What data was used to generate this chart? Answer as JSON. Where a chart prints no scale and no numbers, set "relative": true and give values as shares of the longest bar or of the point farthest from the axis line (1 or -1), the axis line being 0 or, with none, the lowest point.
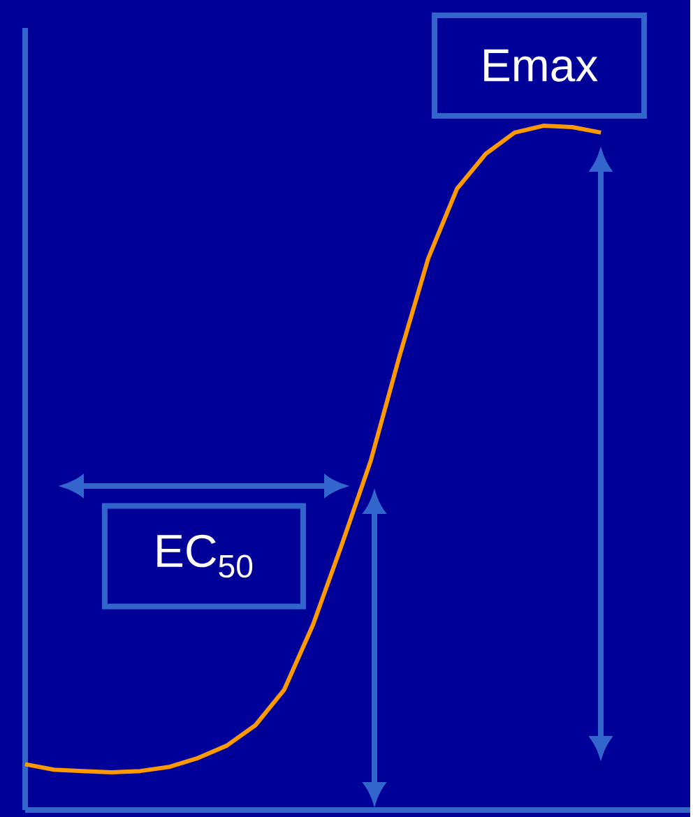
{
  "chart_data": {
    "type": "line",
    "relative": true,
    "categories": [
      null,
      null,
      null,
      null,
      null,
      null,
      null,
      null,
      null,
      null,
      null,
      null,
      null,
      null,
      null,
      null,
      null,
      null,
      null,
      null,
      null
    ],
    "series": [
      {
        "color": "#ff9900",
        "values": [
          0.067,
          0.059,
          0.057,
          0.055,
          0.057,
          0.063,
          0.076,
          0.094,
          0.124,
          0.176,
          0.271,
          0.388,
          0.51,
          0.663,
          0.806,
          0.908,
          0.959,
          0.99,
          1.0,
          0.998,
          0.99
        ]
      }
    ],
    "annotations": [
      "Emax",
      "EC$_{50}$"
    ]
  }
}
